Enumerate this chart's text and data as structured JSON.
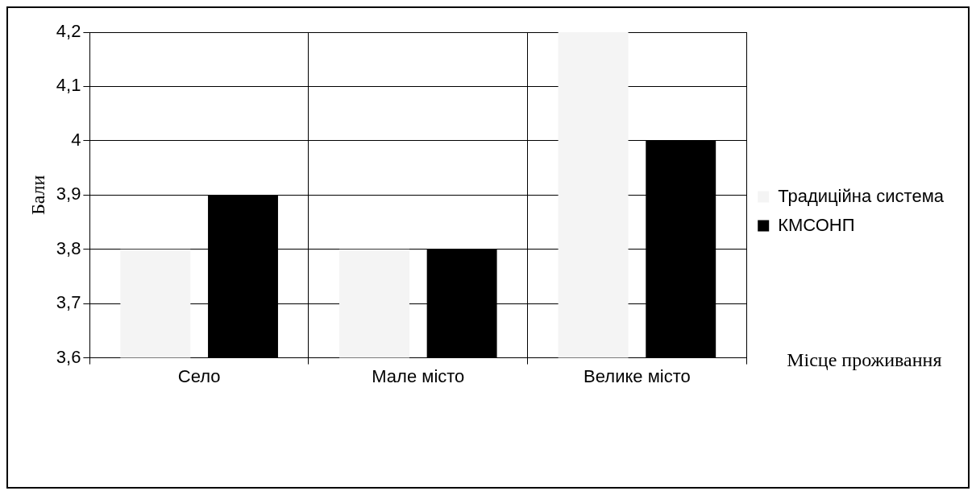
{
  "chart_data": {
    "type": "bar",
    "xlabel": "Місце проживання",
    "ylabel": "Бали",
    "categories": [
      "Село",
      "Мале місто",
      "Велике місто"
    ],
    "series": [
      {
        "name": "Традиційна система",
        "color": "#f4f4f4",
        "values": [
          3.8,
          3.8,
          4.2
        ]
      },
      {
        "name": "КМСОНП",
        "color": "#000000",
        "values": [
          3.9,
          3.8,
          4.0
        ]
      }
    ],
    "ylim": [
      3.6,
      4.2
    ],
    "yticks": [
      {
        "value": 3.6,
        "label": "3,6"
      },
      {
        "value": 3.7,
        "label": "3,7"
      },
      {
        "value": 3.8,
        "label": "3,8"
      },
      {
        "value": 3.9,
        "label": "3,9"
      },
      4,
      {
        "value": 4.1,
        "label": "4,1"
      },
      {
        "value": 4.2,
        "label": "4,2"
      }
    ],
    "grid": true,
    "legend": "right"
  }
}
